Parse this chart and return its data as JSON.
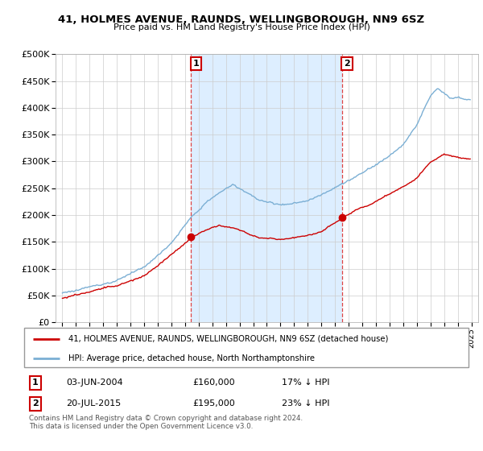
{
  "title": "41, HOLMES AVENUE, RAUNDS, WELLINGBOROUGH, NN9 6SZ",
  "subtitle": "Price paid vs. HM Land Registry's House Price Index (HPI)",
  "line1_label": "41, HOLMES AVENUE, RAUNDS, WELLINGBOROUGH, NN9 6SZ (detached house)",
  "line2_label": "HPI: Average price, detached house, North Northamptonshire",
  "sale1_date": "03-JUN-2004",
  "sale1_price": 160000,
  "sale1_pct": "17% ↓ HPI",
  "sale2_date": "20-JUL-2015",
  "sale2_price": 195000,
  "sale2_pct": "23% ↓ HPI",
  "footer": "Contains HM Land Registry data © Crown copyright and database right 2024.\nThis data is licensed under the Open Government Licence v3.0.",
  "red_color": "#cc0000",
  "blue_color": "#7bafd4",
  "shade_color": "#ddeeff",
  "ylim": [
    0,
    500000
  ],
  "yticks": [
    0,
    50000,
    100000,
    150000,
    200000,
    250000,
    300000,
    350000,
    400000,
    450000,
    500000
  ],
  "xlim_start": 1994.5,
  "xlim_end": 2025.5
}
